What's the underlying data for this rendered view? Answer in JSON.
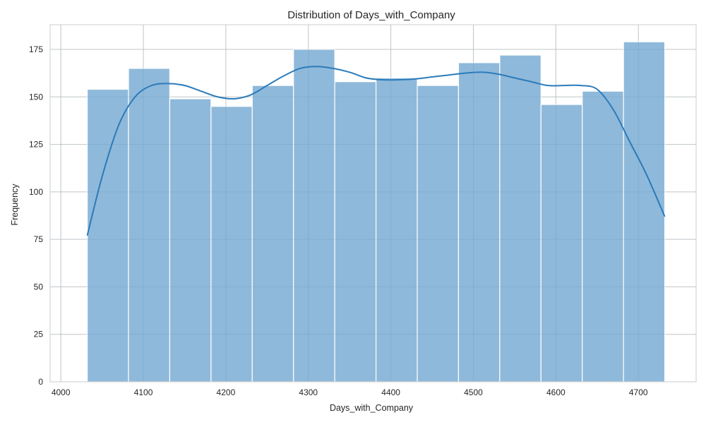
{
  "chart_data": {
    "type": "bar",
    "subtype": "histogram-with-kde",
    "title": "Distribution of Days_with_Company",
    "xlabel": "Days_with_Company",
    "ylabel": "Frequency",
    "xlim": [
      3987,
      4770
    ],
    "ylim": [
      0,
      188
    ],
    "xticks": [
      4000,
      4100,
      4200,
      4300,
      4400,
      4500,
      4600,
      4700
    ],
    "yticks": [
      0,
      25,
      50,
      75,
      100,
      125,
      150,
      175
    ],
    "grid": true,
    "bar_color": "#8fb9da",
    "bar_edge_color": "#ffffff",
    "kde_color": "#2b7bba",
    "bins": [
      {
        "x0": 4032,
        "x1": 4082,
        "count": 154
      },
      {
        "x0": 4082,
        "x1": 4132,
        "count": 165
      },
      {
        "x0": 4132,
        "x1": 4182,
        "count": 149
      },
      {
        "x0": 4182,
        "x1": 4232,
        "count": 145
      },
      {
        "x0": 4232,
        "x1": 4282,
        "count": 156
      },
      {
        "x0": 4282,
        "x1": 4332,
        "count": 175
      },
      {
        "x0": 4332,
        "x1": 4382,
        "count": 158
      },
      {
        "x0": 4382,
        "x1": 4432,
        "count": 160
      },
      {
        "x0": 4432,
        "x1": 4482,
        "count": 156
      },
      {
        "x0": 4482,
        "x1": 4532,
        "count": 168
      },
      {
        "x0": 4532,
        "x1": 4582,
        "count": 172
      },
      {
        "x0": 4582,
        "x1": 4632,
        "count": 146
      },
      {
        "x0": 4632,
        "x1": 4682,
        "count": 153
      },
      {
        "x0": 4682,
        "x1": 4732,
        "count": 179
      }
    ],
    "kde": {
      "x": [
        4032,
        4050,
        4070,
        4090,
        4110,
        4130,
        4150,
        4170,
        4190,
        4210,
        4230,
        4250,
        4270,
        4290,
        4310,
        4330,
        4350,
        4370,
        4390,
        4410,
        4430,
        4450,
        4470,
        4490,
        4510,
        4530,
        4550,
        4570,
        4590,
        4610,
        4630,
        4650,
        4670,
        4690,
        4710,
        4732
      ],
      "y": [
        77,
        108,
        135,
        150,
        156,
        157,
        156,
        153,
        150,
        149,
        151,
        156,
        161,
        165,
        166,
        165,
        163,
        160,
        159,
        159,
        159.5,
        160.5,
        161.5,
        162.5,
        163,
        162,
        160,
        158,
        156,
        156,
        156,
        154,
        143,
        126,
        109,
        87
      ]
    }
  }
}
